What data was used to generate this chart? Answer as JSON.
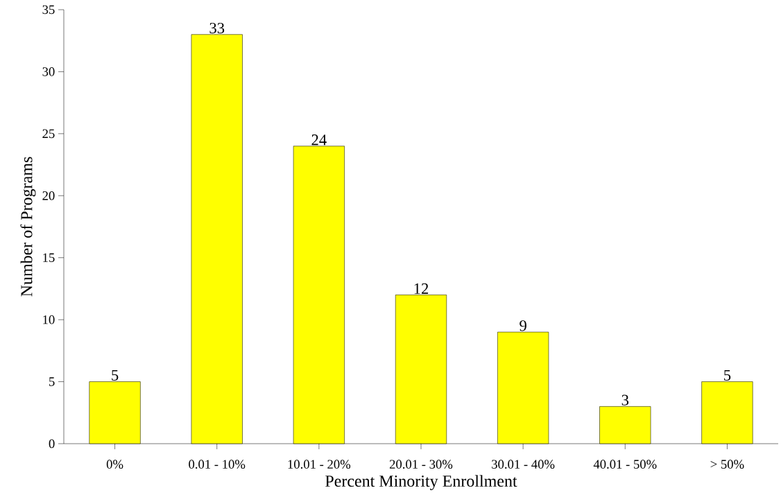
{
  "chart_data": {
    "type": "bar",
    "xlabel": "Percent Minority Enrollment",
    "ylabel": "Number of Programs",
    "categories": [
      "0%",
      "0.01 - 10%",
      "10.01 - 20%",
      "20.01 - 30%",
      "30.01 - 40%",
      "40.01 - 50%",
      "> 50%"
    ],
    "values": [
      5,
      33,
      24,
      12,
      9,
      3,
      5
    ],
    "color": "#ffff00",
    "ylim": [
      0,
      35
    ],
    "yticks": [
      0,
      5,
      10,
      15,
      20,
      25,
      30,
      35
    ],
    "data_labels": true
  }
}
